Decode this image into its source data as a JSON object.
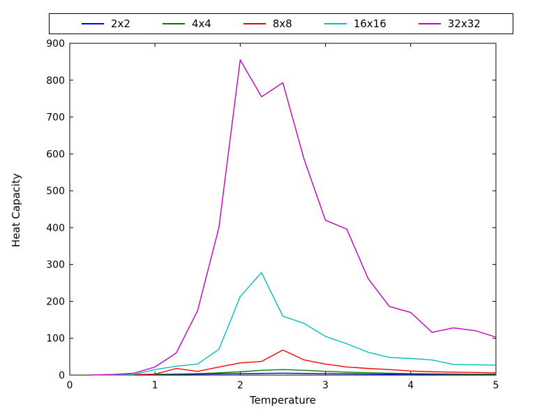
{
  "chart_data": {
    "type": "line",
    "title": "",
    "xlabel": "Temperature",
    "ylabel": "Heat Capacity",
    "xlim": [
      0,
      5
    ],
    "ylim": [
      0,
      900
    ],
    "x_ticks": [
      "0",
      "1",
      "2",
      "3",
      "4",
      "5"
    ],
    "y_ticks": [
      "0",
      "100",
      "200",
      "300",
      "400",
      "500",
      "600",
      "700",
      "800",
      "900"
    ],
    "grid": false,
    "legend_position": "top-horizontal-outside",
    "x": [
      0.25,
      0.5,
      0.75,
      1.0,
      1.25,
      1.5,
      1.75,
      2.0,
      2.25,
      2.5,
      2.75,
      3.0,
      3.25,
      3.5,
      3.75,
      4.0,
      4.25,
      4.5,
      4.75,
      5.0
    ],
    "series": [
      {
        "name": "2x2",
        "color": "#0000ff",
        "values": [
          0.3,
          0.6,
          1.0,
          1.5,
          2.0,
          2.5,
          3.5,
          4.0,
          4.5,
          5.0,
          4.5,
          4.0,
          3.5,
          3.0,
          2.5,
          2.5,
          2.0,
          2.0,
          2.0,
          2.0
        ]
      },
      {
        "name": "4x4",
        "color": "#007f00",
        "values": [
          0.3,
          0.7,
          1.2,
          2.0,
          3.0,
          4.0,
          6.0,
          9.0,
          13.0,
          15.0,
          13.0,
          10.0,
          8.0,
          6.5,
          5.0,
          4.0,
          3.5,
          3.0,
          2.5,
          2.5
        ]
      },
      {
        "name": "8x8",
        "color": "#ff0000",
        "values": [
          0.3,
          0.8,
          1.5,
          2.5,
          18.0,
          10.0,
          22.0,
          33.0,
          37.0,
          68.0,
          41.0,
          30.0,
          22.0,
          18.0,
          15.0,
          11.0,
          9.0,
          8.0,
          7.0,
          6.0
        ]
      },
      {
        "name": "16x16",
        "color": "#00bfbf",
        "values": [
          0.3,
          1.0,
          2.0,
          15.0,
          24.0,
          30.0,
          70.0,
          213.0,
          278.0,
          160.0,
          140.0,
          105.0,
          85.0,
          62.0,
          48.0,
          45.0,
          41.0,
          29.0,
          28.0,
          27.0
        ]
      },
      {
        "name": "32x32",
        "color": "#bf00bf",
        "values": [
          0.4,
          1.5,
          5.0,
          22.0,
          60.0,
          175.0,
          400.0,
          855.0,
          755.0,
          793.0,
          585.0,
          420.0,
          396.0,
          262.0,
          186.0,
          170.0,
          116.0,
          128.0,
          121.0,
          103.0
        ]
      }
    ]
  }
}
